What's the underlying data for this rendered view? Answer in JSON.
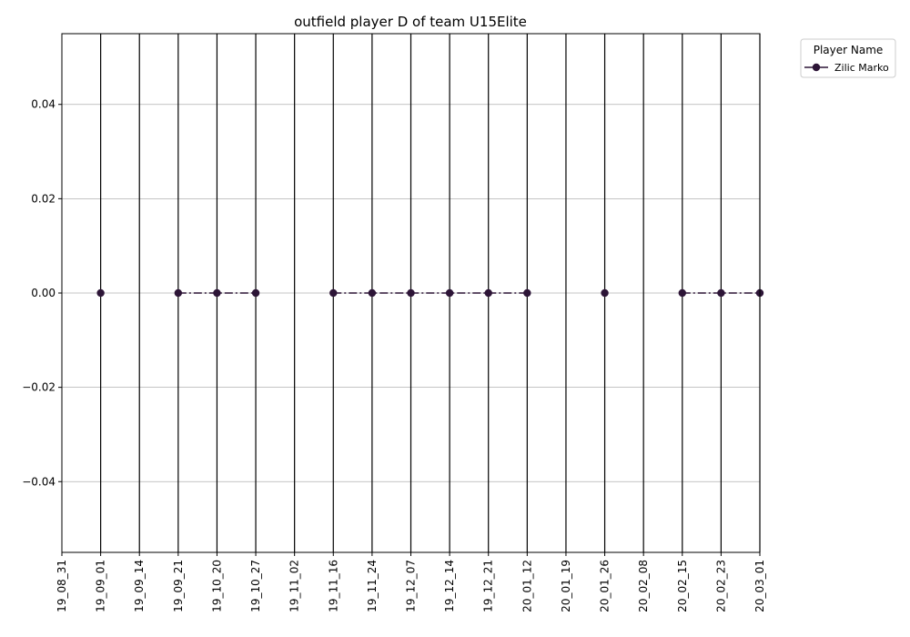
{
  "chart_data": {
    "type": "line",
    "title": "outfield player D of team U15Elite",
    "xlabel": "",
    "ylabel": "",
    "categories": [
      "19_08_31",
      "19_09_01",
      "19_09_14",
      "19_09_21",
      "19_10_20",
      "19_10_27",
      "19_11_02",
      "19_11_16",
      "19_11_24",
      "19_12_07",
      "19_12_14",
      "19_12_21",
      "20_01_12",
      "20_01_19",
      "20_01_26",
      "20_02_08",
      "20_02_15",
      "20_02_23",
      "20_03_01"
    ],
    "y_ticks": [
      "0.04",
      "0.02",
      "0.00",
      "−0.02",
      "−0.04"
    ],
    "ylim": [
      -0.055,
      0.055
    ],
    "grid": "horizontal",
    "vertical_lines_at": [
      "19_09_01",
      "19_09_14",
      "19_09_21",
      "19_10_20",
      "19_10_27",
      "19_11_02",
      "19_11_16",
      "19_11_24",
      "19_12_07",
      "19_12_14",
      "19_12_21",
      "20_01_12",
      "20_01_19",
      "20_01_26",
      "20_02_08",
      "20_02_15",
      "20_02_23",
      "20_03_01"
    ],
    "legend": {
      "title": "Player Name",
      "placement": "outside-top-right"
    },
    "series": [
      {
        "name": "Zilic Marko",
        "color": "#2d1537",
        "line_style": "dash-dot",
        "marker": "circle",
        "points": [
          {
            "x": "19_09_01",
            "y": 0.0
          },
          {
            "x": "19_09_21",
            "y": 0.0
          },
          {
            "x": "19_10_20",
            "y": 0.0
          },
          {
            "x": "19_10_27",
            "y": 0.0
          },
          {
            "x": "19_11_16",
            "y": 0.0
          },
          {
            "x": "19_11_24",
            "y": 0.0
          },
          {
            "x": "19_12_07",
            "y": 0.0
          },
          {
            "x": "19_12_14",
            "y": 0.0
          },
          {
            "x": "19_12_21",
            "y": 0.0
          },
          {
            "x": "20_01_12",
            "y": 0.0
          },
          {
            "x": "20_01_26",
            "y": 0.0
          },
          {
            "x": "20_02_15",
            "y": 0.0
          },
          {
            "x": "20_02_23",
            "y": 0.0
          },
          {
            "x": "20_03_01",
            "y": 0.0
          }
        ],
        "segments": [
          [
            "19_09_21",
            "19_10_20",
            "19_10_27"
          ],
          [
            "19_11_16",
            "19_11_24",
            "19_12_07",
            "19_12_14",
            "19_12_21",
            "20_01_12"
          ],
          [
            "20_02_15",
            "20_02_23",
            "20_03_01"
          ]
        ]
      }
    ]
  }
}
